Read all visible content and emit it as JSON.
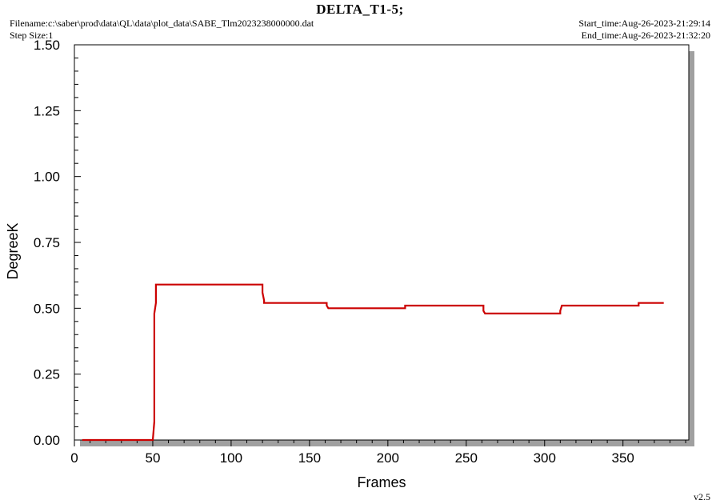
{
  "header": {
    "title": "DELTA_T1-5;",
    "filename": "Filename:c:\\saber\\prod\\data\\QL\\data\\plot_data\\SABE_Tlm2023238000000.dat",
    "step_size": "Step Size:1",
    "start_time": "Start_time:Aug-26-2023-21:29:14",
    "end_time": "End_time:Aug-26-2023-21:32:20"
  },
  "footer": {
    "version": "v2.5"
  },
  "chart_data": {
    "type": "line",
    "title": "DELTA_T1-5;",
    "xlabel": "Frames",
    "ylabel": "DegreeK",
    "xlim": [
      0,
      392
    ],
    "ylim": [
      0,
      1.5
    ],
    "x_ticks": [
      0,
      50,
      100,
      150,
      200,
      250,
      300,
      350
    ],
    "x_tick_labels": [
      "0",
      "50",
      "100",
      "150",
      "200",
      "250",
      "300",
      "350"
    ],
    "y_ticks": [
      0,
      0.25,
      0.5,
      0.75,
      1.0,
      1.25,
      1.5
    ],
    "y_tick_labels": [
      "0.00",
      "0.25",
      "0.50",
      "0.75",
      "1.00",
      "1.25",
      "1.50"
    ],
    "grid": false,
    "line_color": "#cc0000",
    "series": [
      {
        "x": [
          5,
          50,
          51,
          51,
          51,
          52,
          52,
          120,
          120,
          121,
          121,
          161,
          161,
          162,
          162,
          211,
          211,
          212,
          212,
          261,
          261,
          262,
          262,
          310,
          310,
          311,
          311,
          360,
          360,
          362,
          362,
          376
        ],
        "y": [
          0,
          0,
          0.07,
          0.44,
          0.48,
          0.52,
          0.59,
          0.59,
          0.56,
          0.53,
          0.52,
          0.52,
          0.51,
          0.5,
          0.5,
          0.5,
          0.51,
          0.51,
          0.51,
          0.51,
          0.49,
          0.48,
          0.48,
          0.48,
          0.49,
          0.51,
          0.51,
          0.51,
          0.52,
          0.52,
          0.52,
          0.52
        ]
      }
    ]
  }
}
